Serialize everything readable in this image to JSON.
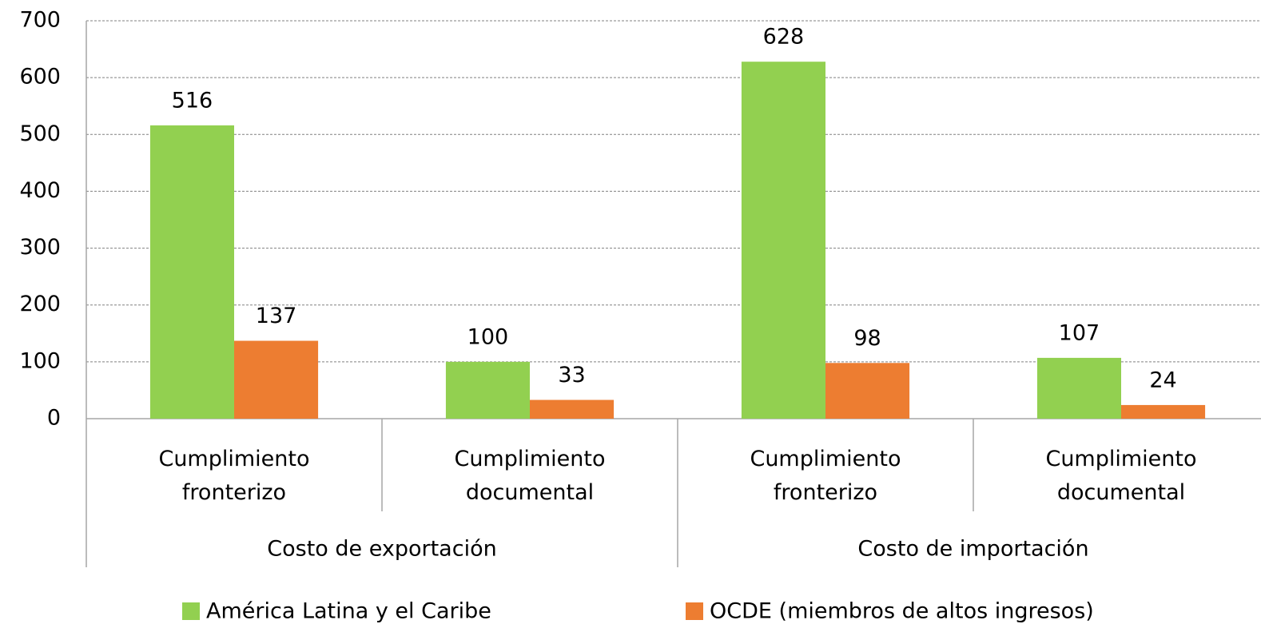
{
  "chart_data": {
    "type": "bar",
    "groups": [
      {
        "label": "Costo de exportación",
        "categories": [
          "Cumplimiento fronterizo",
          "Cumplimiento documental"
        ]
      },
      {
        "label": "Costo de importación",
        "categories": [
          "Cumplimiento fronterizo",
          "Cumplimiento documental"
        ]
      }
    ],
    "series": [
      {
        "name": "América Latina y el Caribe",
        "color": "#92d050",
        "values": [
          516,
          100,
          628,
          107
        ]
      },
      {
        "name": "OCDE (miembros de altos ingresos)",
        "color": "#ed7d31",
        "values": [
          137,
          33,
          98,
          24
        ]
      }
    ],
    "ylim": [
      0,
      700
    ],
    "yticks": [
      0,
      100,
      200,
      300,
      400,
      500,
      600,
      700
    ],
    "grid": true,
    "legend": "bottom"
  }
}
